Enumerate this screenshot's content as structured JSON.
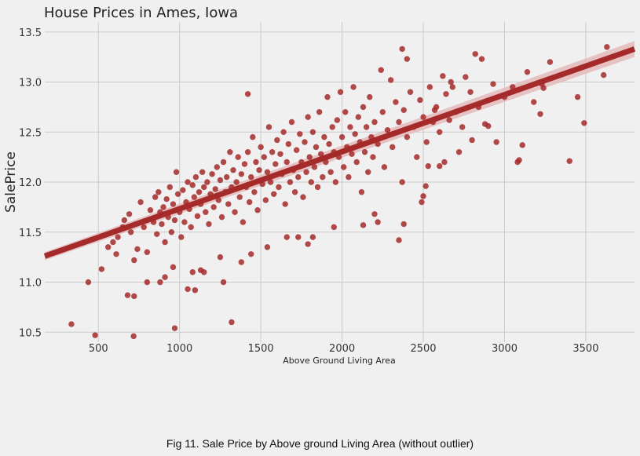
{
  "caption": "Fig 11. Sale Price by Above ground Living Area (without outlier)",
  "chart_data": {
    "type": "scatter",
    "title": "House Prices in Ames, Iowa",
    "xlabel": "Above Ground Living Area",
    "ylabel": "SalePrice",
    "xlim": [
      170,
      3800
    ],
    "ylim": [
      10.4,
      13.6
    ],
    "xticks": [
      500,
      1000,
      1500,
      2000,
      2500,
      3000,
      3500
    ],
    "yticks": [
      10.5,
      11.0,
      11.5,
      12.0,
      12.5,
      13.0,
      13.5
    ],
    "grid": true,
    "point_color": "#a52a2a",
    "line_color": "#a52a2a",
    "ci_color": "#e3b7b7",
    "regression": {
      "x": [
        170,
        3800
      ],
      "y": [
        11.26,
        13.33
      ]
    },
    "confidence_band": {
      "x": [
        170,
        3800
      ],
      "upper": [
        11.3,
        13.41
      ],
      "lower": [
        11.22,
        13.25
      ]
    },
    "points": [
      [
        334,
        10.58
      ],
      [
        480,
        10.47
      ],
      [
        438,
        11.0
      ],
      [
        520,
        11.13
      ],
      [
        717,
        10.46
      ],
      [
        970,
        10.54
      ],
      [
        1320,
        10.6
      ],
      [
        680,
        10.87
      ],
      [
        720,
        10.86
      ],
      [
        1050,
        10.93
      ],
      [
        1095,
        10.92
      ],
      [
        1270,
        11.0
      ],
      [
        800,
        11.0
      ],
      [
        880,
        11.0
      ],
      [
        910,
        11.05
      ],
      [
        960,
        11.15
      ],
      [
        1080,
        11.1
      ],
      [
        1130,
        11.12
      ],
      [
        1150,
        11.1
      ],
      [
        1250,
        11.25
      ],
      [
        1380,
        11.2
      ],
      [
        1440,
        11.28
      ],
      [
        1540,
        11.35
      ],
      [
        1660,
        11.45
      ],
      [
        1730,
        11.45
      ],
      [
        1790,
        11.38
      ],
      [
        1820,
        11.45
      ],
      [
        1950,
        11.55
      ],
      [
        2130,
        11.57
      ],
      [
        2220,
        11.6
      ],
      [
        2350,
        11.42
      ],
      [
        2380,
        11.58
      ],
      [
        2200,
        11.68
      ],
      [
        2490,
        11.8
      ],
      [
        2500,
        11.86
      ],
      [
        2515,
        11.96
      ],
      [
        2530,
        12.16
      ],
      [
        2600,
        12.16
      ],
      [
        2630,
        12.2
      ],
      [
        2720,
        12.3
      ],
      [
        2800,
        12.42
      ],
      [
        2900,
        12.56
      ],
      [
        2950,
        12.4
      ],
      [
        3080,
        12.2
      ],
      [
        3090,
        12.22
      ],
      [
        3110,
        12.37
      ],
      [
        3140,
        13.1
      ],
      [
        3180,
        12.8
      ],
      [
        3220,
        12.68
      ],
      [
        3230,
        12.98
      ],
      [
        3240,
        12.94
      ],
      [
        3280,
        13.2
      ],
      [
        3400,
        12.21
      ],
      [
        3450,
        12.85
      ],
      [
        3490,
        12.59
      ],
      [
        3610,
        13.07
      ],
      [
        3630,
        13.35
      ],
      [
        2370,
        13.33
      ],
      [
        2400,
        13.23
      ],
      [
        2820,
        13.28
      ],
      [
        2860,
        13.23
      ],
      [
        2670,
        13.0
      ],
      [
        2570,
        12.72
      ],
      [
        2620,
        13.06
      ],
      [
        1420,
        12.88
      ],
      [
        560,
        11.35
      ],
      [
        590,
        11.4
      ],
      [
        610,
        11.28
      ],
      [
        620,
        11.45
      ],
      [
        650,
        11.55
      ],
      [
        660,
        11.62
      ],
      [
        690,
        11.68
      ],
      [
        700,
        11.5
      ],
      [
        720,
        11.22
      ],
      [
        740,
        11.33
      ],
      [
        760,
        11.8
      ],
      [
        780,
        11.55
      ],
      [
        800,
        11.3
      ],
      [
        820,
        11.72
      ],
      [
        840,
        11.6
      ],
      [
        850,
        11.85
      ],
      [
        860,
        11.48
      ],
      [
        870,
        11.9
      ],
      [
        880,
        11.7
      ],
      [
        890,
        11.58
      ],
      [
        900,
        11.75
      ],
      [
        910,
        11.4
      ],
      [
        920,
        11.83
      ],
      [
        930,
        11.65
      ],
      [
        940,
        11.95
      ],
      [
        950,
        11.5
      ],
      [
        960,
        11.78
      ],
      [
        970,
        11.62
      ],
      [
        980,
        12.1
      ],
      [
        990,
        11.88
      ],
      [
        1000,
        11.7
      ],
      [
        1010,
        11.45
      ],
      [
        1020,
        11.92
      ],
      [
        1030,
        11.6
      ],
      [
        1040,
        11.8
      ],
      [
        1050,
        12.0
      ],
      [
        1060,
        11.73
      ],
      [
        1070,
        11.55
      ],
      [
        1080,
        11.97
      ],
      [
        1090,
        11.85
      ],
      [
        1100,
        12.05
      ],
      [
        1110,
        11.66
      ],
      [
        1120,
        11.9
      ],
      [
        1130,
        11.78
      ],
      [
        1140,
        12.1
      ],
      [
        1150,
        11.95
      ],
      [
        1160,
        11.7
      ],
      [
        1170,
        12.0
      ],
      [
        1180,
        11.58
      ],
      [
        1190,
        11.88
      ],
      [
        1200,
        12.08
      ],
      [
        1210,
        11.75
      ],
      [
        1220,
        11.93
      ],
      [
        1230,
        12.15
      ],
      [
        1240,
        11.82
      ],
      [
        1250,
        12.02
      ],
      [
        1260,
        11.65
      ],
      [
        1270,
        12.2
      ],
      [
        1280,
        11.9
      ],
      [
        1290,
        12.05
      ],
      [
        1300,
        11.78
      ],
      [
        1310,
        12.3
      ],
      [
        1320,
        11.95
      ],
      [
        1330,
        12.12
      ],
      [
        1340,
        11.7
      ],
      [
        1350,
        12.0
      ],
      [
        1360,
        12.25
      ],
      [
        1370,
        11.85
      ],
      [
        1380,
        12.08
      ],
      [
        1390,
        11.6
      ],
      [
        1400,
        12.18
      ],
      [
        1410,
        11.95
      ],
      [
        1420,
        12.3
      ],
      [
        1430,
        11.8
      ],
      [
        1440,
        12.05
      ],
      [
        1450,
        12.45
      ],
      [
        1460,
        11.9
      ],
      [
        1470,
        12.2
      ],
      [
        1480,
        11.72
      ],
      [
        1490,
        12.12
      ],
      [
        1500,
        12.35
      ],
      [
        1510,
        11.98
      ],
      [
        1520,
        12.25
      ],
      [
        1530,
        11.82
      ],
      [
        1540,
        12.1
      ],
      [
        1550,
        12.55
      ],
      [
        1560,
        12.0
      ],
      [
        1570,
        12.3
      ],
      [
        1580,
        11.88
      ],
      [
        1590,
        12.18
      ],
      [
        1600,
        12.42
      ],
      [
        1610,
        11.95
      ],
      [
        1620,
        12.28
      ],
      [
        1630,
        12.08
      ],
      [
        1640,
        12.5
      ],
      [
        1650,
        11.78
      ],
      [
        1660,
        12.2
      ],
      [
        1670,
        12.38
      ],
      [
        1680,
        12.0
      ],
      [
        1690,
        12.6
      ],
      [
        1700,
        12.12
      ],
      [
        1710,
        11.9
      ],
      [
        1720,
        12.32
      ],
      [
        1730,
        12.05
      ],
      [
        1740,
        12.48
      ],
      [
        1750,
        12.2
      ],
      [
        1760,
        11.85
      ],
      [
        1770,
        12.4
      ],
      [
        1780,
        12.1
      ],
      [
        1790,
        12.65
      ],
      [
        1800,
        12.25
      ],
      [
        1810,
        12.0
      ],
      [
        1820,
        12.5
      ],
      [
        1830,
        12.15
      ],
      [
        1840,
        12.35
      ],
      [
        1850,
        11.95
      ],
      [
        1860,
        12.7
      ],
      [
        1870,
        12.28
      ],
      [
        1880,
        12.05
      ],
      [
        1890,
        12.45
      ],
      [
        1900,
        12.2
      ],
      [
        1910,
        12.85
      ],
      [
        1920,
        12.38
      ],
      [
        1930,
        12.1
      ],
      [
        1940,
        12.55
      ],
      [
        1950,
        12.3
      ],
      [
        1960,
        12.0
      ],
      [
        1970,
        12.62
      ],
      [
        1980,
        12.25
      ],
      [
        1990,
        12.9
      ],
      [
        2000,
        12.45
      ],
      [
        2010,
        12.15
      ],
      [
        2020,
        12.7
      ],
      [
        2030,
        12.35
      ],
      [
        2040,
        12.05
      ],
      [
        2050,
        12.55
      ],
      [
        2060,
        12.28
      ],
      [
        2070,
        12.95
      ],
      [
        2080,
        12.48
      ],
      [
        2090,
        12.2
      ],
      [
        2100,
        12.65
      ],
      [
        2110,
        12.4
      ],
      [
        2120,
        11.9
      ],
      [
        2130,
        12.75
      ],
      [
        2140,
        12.3
      ],
      [
        2150,
        12.55
      ],
      [
        2160,
        12.1
      ],
      [
        2170,
        12.85
      ],
      [
        2180,
        12.45
      ],
      [
        2190,
        12.25
      ],
      [
        2200,
        12.6
      ],
      [
        2220,
        12.38
      ],
      [
        2240,
        13.12
      ],
      [
        2250,
        12.7
      ],
      [
        2260,
        12.15
      ],
      [
        2280,
        12.52
      ],
      [
        2300,
        13.02
      ],
      [
        2310,
        12.35
      ],
      [
        2330,
        12.8
      ],
      [
        2350,
        12.6
      ],
      [
        2370,
        12.0
      ],
      [
        2380,
        12.72
      ],
      [
        2400,
        12.45
      ],
      [
        2420,
        12.9
      ],
      [
        2440,
        12.55
      ],
      [
        2460,
        12.25
      ],
      [
        2480,
        12.82
      ],
      [
        2500,
        12.65
      ],
      [
        2520,
        12.4
      ],
      [
        2540,
        12.95
      ],
      [
        2560,
        12.6
      ],
      [
        2580,
        12.75
      ],
      [
        2600,
        12.5
      ],
      [
        2640,
        12.88
      ],
      [
        2660,
        12.62
      ],
      [
        2680,
        12.95
      ],
      [
        2700,
        12.7
      ],
      [
        2740,
        12.55
      ],
      [
        2760,
        13.05
      ],
      [
        2790,
        12.9
      ],
      [
        2840,
        12.75
      ],
      [
        2880,
        12.58
      ],
      [
        2930,
        12.98
      ],
      [
        3000,
        12.85
      ],
      [
        3050,
        12.95
      ]
    ]
  }
}
